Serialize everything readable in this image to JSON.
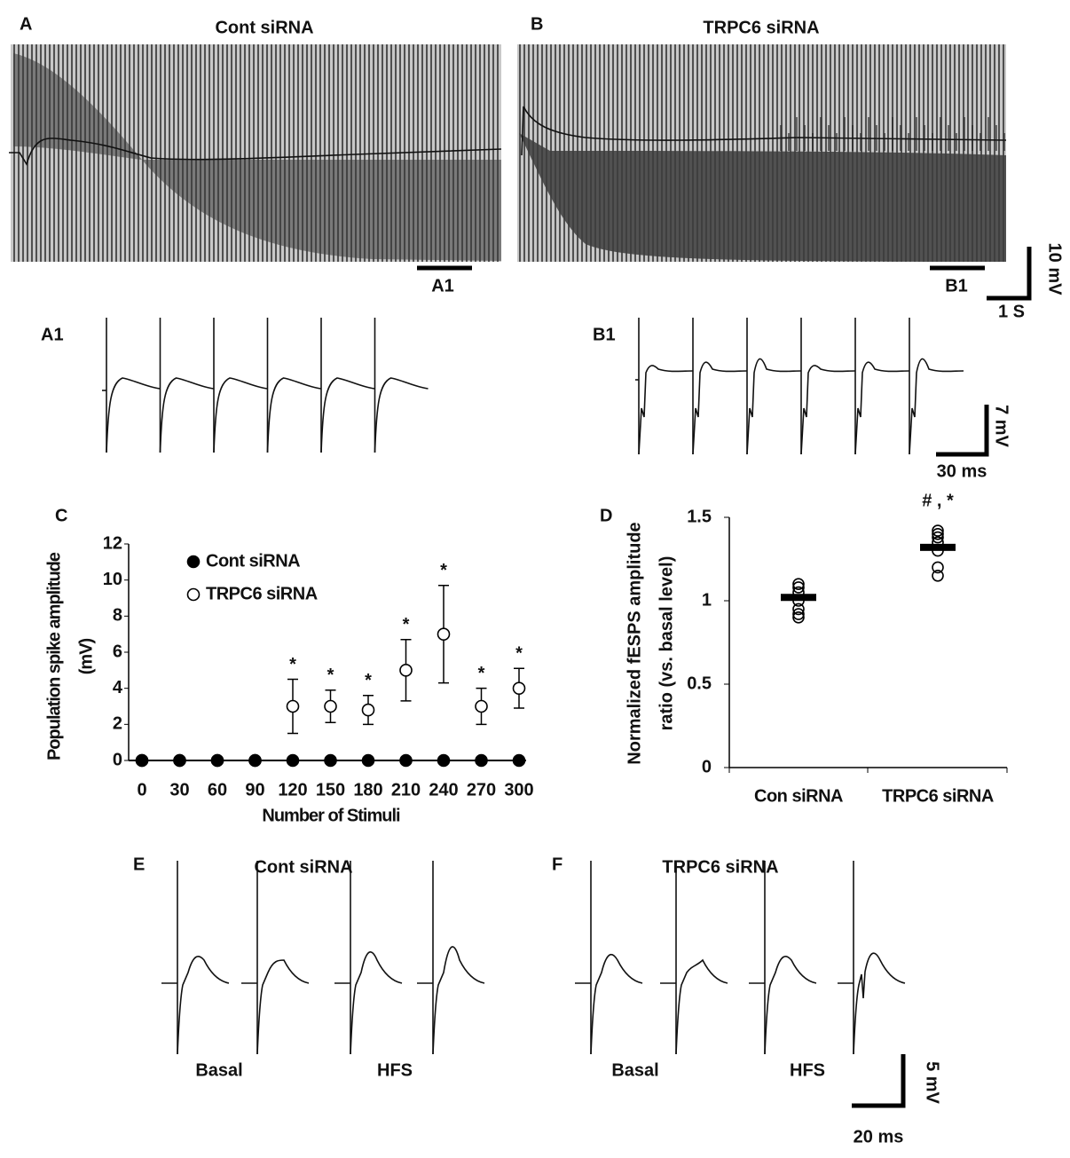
{
  "figure": {
    "panel_a": {
      "label": "A",
      "title": "Cont siRNA",
      "bar_label": "A1"
    },
    "panel_b": {
      "label": "B",
      "title": "TRPC6 siRNA",
      "bar_label": "B1"
    },
    "scale_ab": {
      "y": "10 mV",
      "x": "1 S"
    },
    "panel_a1": {
      "label": "A1"
    },
    "panel_b1": {
      "label": "B1"
    },
    "scale_a1b1": {
      "y": "7 mV",
      "x": "30 ms"
    },
    "panel_e": {
      "label": "E",
      "title": "Cont siRNA",
      "conditions": [
        "Basal",
        "HFS"
      ]
    },
    "panel_f": {
      "label": "F",
      "title": "TRPC6 siRNA",
      "conditions": [
        "Basal",
        "HFS"
      ]
    },
    "scale_ef": {
      "y": "5 mV",
      "x": "20 ms"
    }
  },
  "chart_data": [
    {
      "type": "scatter",
      "panel_label": "C",
      "x": [
        0,
        30,
        60,
        90,
        120,
        150,
        180,
        210,
        240,
        270,
        300
      ],
      "series": [
        {
          "name": "Cont siRNA",
          "color": "#000000",
          "marker": "filled",
          "values": [
            0,
            0,
            0,
            0,
            0,
            0,
            0,
            0,
            0,
            0,
            0
          ],
          "errors": [
            null,
            null,
            null,
            null,
            null,
            null,
            null,
            null,
            null,
            null,
            null
          ]
        },
        {
          "name": "TRPC6 siRNA",
          "color": "#000000",
          "marker": "open",
          "values": [
            0,
            0,
            0,
            0,
            3,
            3,
            2.8,
            5,
            7,
            3,
            4
          ],
          "errors": [
            null,
            null,
            null,
            null,
            1.5,
            0.9,
            0.8,
            1.7,
            2.7,
            1,
            1.1
          ]
        }
      ],
      "significance": [
        null,
        null,
        null,
        null,
        "*",
        "*",
        "*",
        "*",
        "*",
        "*",
        "*"
      ],
      "xlim": [
        0,
        300
      ],
      "xticks": [
        0,
        30,
        60,
        90,
        120,
        150,
        180,
        210,
        240,
        270,
        300
      ],
      "ylim": [
        0,
        12
      ],
      "yticks": [
        0,
        2,
        4,
        6,
        8,
        10,
        12
      ],
      "xlabel": "Number of Stimuli",
      "ylabel_lines": [
        "Population spike amplitude",
        "(mV)"
      ],
      "legend": "top-left"
    },
    {
      "type": "dot",
      "panel_label": "D",
      "categories": [
        "Con siRNA",
        "TRPC6 siRNA"
      ],
      "points": [
        [
          0.9,
          0.92,
          0.95,
          1.0,
          1.05,
          1.08,
          1.1
        ],
        [
          1.15,
          1.2,
          1.3,
          1.35,
          1.38,
          1.4,
          1.42
        ]
      ],
      "means": [
        1.02,
        1.32
      ],
      "color": "#000000",
      "annotation": {
        "category": 1,
        "text": "# , *"
      },
      "ylim": [
        0,
        1.5
      ],
      "yticks": [
        0,
        0.5,
        1,
        1.5
      ],
      "ylabel_lines": [
        "Normalized fESPS amplitude",
        "ratio (vs. basal level)"
      ]
    }
  ]
}
